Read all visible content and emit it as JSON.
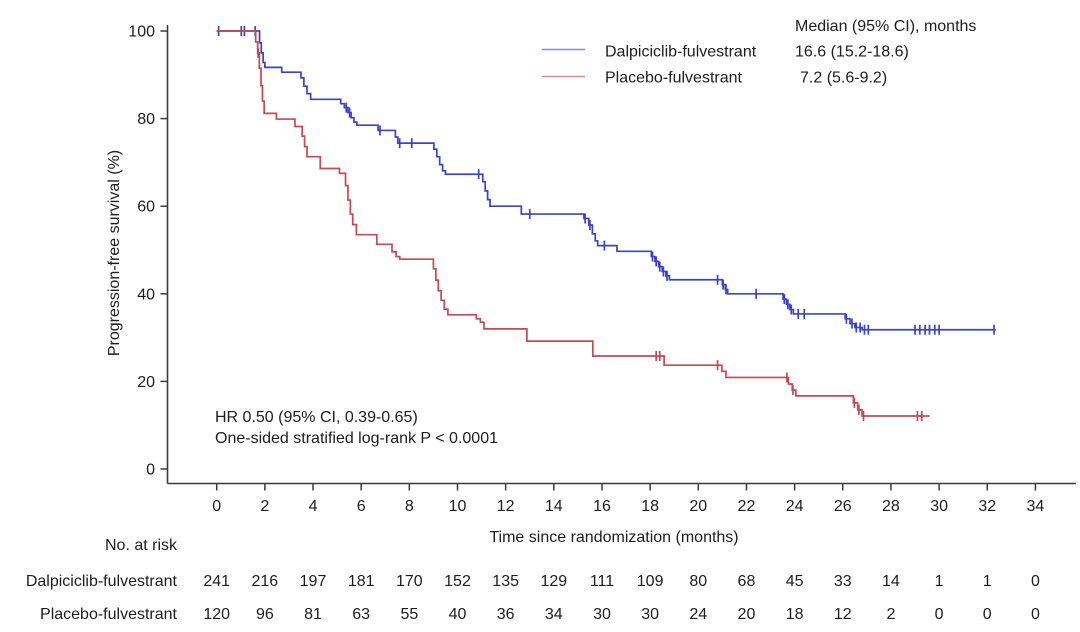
{
  "chart_data": {
    "type": "line",
    "subtype": "kaplan-meier-step",
    "title": "",
    "xlabel": "Time since randomization (months)",
    "ylabel": "Progression-free survival (%)",
    "xlim": [
      0,
      34
    ],
    "ylim": [
      0,
      100
    ],
    "xticks": [
      0,
      2,
      4,
      6,
      8,
      10,
      12,
      14,
      16,
      18,
      20,
      22,
      24,
      26,
      28,
      30,
      32,
      34
    ],
    "yticks": [
      0,
      20,
      40,
      60,
      80,
      100
    ],
    "grid": false,
    "legend_position": "top-center-right",
    "legend": {
      "header": "Median (95% CI), months",
      "entries": [
        {
          "label": "Dalpiciclib-fulvestrant",
          "median": "16.6 (15.2-18.6)",
          "color": "#3d43c6"
        },
        {
          "label": "Placebo-fulvestrant",
          "median": "7.2 (5.6-9.2)",
          "color": "#c44a53"
        }
      ]
    },
    "annotation": {
      "line1": "HR 0.50 (95% CI, 0.39-0.65)",
      "line2": "One-sided stratified log-rank P < 0.0001"
    },
    "series": [
      {
        "name": "Dalpiciclib-fulvestrant",
        "color": "#3d43c6",
        "steps": [
          [
            0,
            100
          ],
          [
            1.72,
            100
          ],
          [
            1.78,
            97.3
          ],
          [
            1.85,
            95
          ],
          [
            1.93,
            92.8
          ],
          [
            2.0,
            91.7
          ],
          [
            2.6,
            91.7
          ],
          [
            2.7,
            90.6
          ],
          [
            3.4,
            90.6
          ],
          [
            3.5,
            89.3
          ],
          [
            3.62,
            87.4
          ],
          [
            3.75,
            85.7
          ],
          [
            3.9,
            84.4
          ],
          [
            5.05,
            84.4
          ],
          [
            5.15,
            83.4
          ],
          [
            5.3,
            82.5
          ],
          [
            5.45,
            81.4
          ],
          [
            5.58,
            80.2
          ],
          [
            5.7,
            79.2
          ],
          [
            5.82,
            78.5
          ],
          [
            6.6,
            78.5
          ],
          [
            6.7,
            77.3
          ],
          [
            7.3,
            77.3
          ],
          [
            7.42,
            75.8
          ],
          [
            7.52,
            74.4
          ],
          [
            8.9,
            74.4
          ],
          [
            9.02,
            73.0
          ],
          [
            9.14,
            71.3
          ],
          [
            9.26,
            69.5
          ],
          [
            9.38,
            68.1
          ],
          [
            9.5,
            67.3
          ],
          [
            10.95,
            67.3
          ],
          [
            11.05,
            65.6
          ],
          [
            11.15,
            63.5
          ],
          [
            11.25,
            61.5
          ],
          [
            11.35,
            60.0
          ],
          [
            12.5,
            60.0
          ],
          [
            12.65,
            58.2
          ],
          [
            15.1,
            58.2
          ],
          [
            15.25,
            57.2
          ],
          [
            15.45,
            55.7
          ],
          [
            15.6,
            53.7
          ],
          [
            15.72,
            52.1
          ],
          [
            15.82,
            51.0
          ],
          [
            16.5,
            51.0
          ],
          [
            16.62,
            49.7
          ],
          [
            17.9,
            49.7
          ],
          [
            18.05,
            48.5
          ],
          [
            18.2,
            47.4
          ],
          [
            18.35,
            46.2
          ],
          [
            18.5,
            45.1
          ],
          [
            18.65,
            44.1
          ],
          [
            18.8,
            43.2
          ],
          [
            20.85,
            43.2
          ],
          [
            21.0,
            42.1
          ],
          [
            21.12,
            41.0
          ],
          [
            21.22,
            40.0
          ],
          [
            23.4,
            40.0
          ],
          [
            23.52,
            38.8
          ],
          [
            23.66,
            37.6
          ],
          [
            23.8,
            36.4
          ],
          [
            23.95,
            35.4
          ],
          [
            25.95,
            35.4
          ],
          [
            26.1,
            34.3
          ],
          [
            26.3,
            33.2
          ],
          [
            26.5,
            32.3
          ],
          [
            26.8,
            31.8
          ],
          [
            32.35,
            31.8
          ]
        ],
        "censors": [
          [
            0.08,
            100
          ],
          [
            1.02,
            100
          ],
          [
            1.15,
            100
          ],
          [
            1.6,
            100
          ],
          [
            5.38,
            82.5
          ],
          [
            5.52,
            81.4
          ],
          [
            6.78,
            77.3
          ],
          [
            7.6,
            74.4
          ],
          [
            8.1,
            74.4
          ],
          [
            10.88,
            67.3
          ],
          [
            13.0,
            58.2
          ],
          [
            15.3,
            57.2
          ],
          [
            15.5,
            55.7
          ],
          [
            16.1,
            51.0
          ],
          [
            18.1,
            48.5
          ],
          [
            18.25,
            47.4
          ],
          [
            18.4,
            46.2
          ],
          [
            18.55,
            45.1
          ],
          [
            18.7,
            44.1
          ],
          [
            20.8,
            43.2
          ],
          [
            21.03,
            42.1
          ],
          [
            21.15,
            41.0
          ],
          [
            22.4,
            40.0
          ],
          [
            23.57,
            38.8
          ],
          [
            23.72,
            37.6
          ],
          [
            23.86,
            36.4
          ],
          [
            24.15,
            35.4
          ],
          [
            24.4,
            35.4
          ],
          [
            26.15,
            34.3
          ],
          [
            26.38,
            33.2
          ],
          [
            26.56,
            32.3
          ],
          [
            26.72,
            32.3
          ],
          [
            26.9,
            31.8
          ],
          [
            27.06,
            31.8
          ],
          [
            29.0,
            31.8
          ],
          [
            29.2,
            31.8
          ],
          [
            29.42,
            31.8
          ],
          [
            29.6,
            31.8
          ],
          [
            29.82,
            31.8
          ],
          [
            30.0,
            31.8
          ],
          [
            32.28,
            31.8
          ]
        ]
      },
      {
        "name": "Placebo-fulvestrant",
        "color": "#c44a53",
        "steps": [
          [
            0,
            100
          ],
          [
            1.55,
            100
          ],
          [
            1.62,
            97.5
          ],
          [
            1.7,
            95.0
          ],
          [
            1.77,
            91.5
          ],
          [
            1.84,
            87.5
          ],
          [
            1.9,
            84.0
          ],
          [
            1.97,
            81.2
          ],
          [
            2.4,
            81.2
          ],
          [
            2.48,
            79.9
          ],
          [
            3.15,
            79.9
          ],
          [
            3.25,
            78.2
          ],
          [
            3.45,
            78.2
          ],
          [
            3.55,
            76.0
          ],
          [
            3.65,
            73.6
          ],
          [
            3.75,
            71.3
          ],
          [
            4.2,
            71.3
          ],
          [
            4.3,
            68.6
          ],
          [
            5.0,
            68.6
          ],
          [
            5.1,
            67.5
          ],
          [
            5.25,
            67.5
          ],
          [
            5.35,
            64.7
          ],
          [
            5.45,
            61.4
          ],
          [
            5.55,
            58.2
          ],
          [
            5.65,
            55.8
          ],
          [
            5.8,
            53.5
          ],
          [
            6.55,
            53.5
          ],
          [
            6.65,
            51.3
          ],
          [
            7.15,
            51.3
          ],
          [
            7.28,
            49.6
          ],
          [
            7.45,
            48.5
          ],
          [
            7.6,
            47.9
          ],
          [
            8.9,
            47.9
          ],
          [
            9.0,
            45.7
          ],
          [
            9.1,
            43.1
          ],
          [
            9.2,
            40.7
          ],
          [
            9.32,
            38.5
          ],
          [
            9.45,
            36.5
          ],
          [
            9.6,
            35.2
          ],
          [
            10.6,
            35.2
          ],
          [
            10.78,
            34.3
          ],
          [
            10.95,
            33.5
          ],
          [
            11.1,
            32.0
          ],
          [
            12.75,
            32.0
          ],
          [
            12.88,
            29.2
          ],
          [
            15.5,
            29.2
          ],
          [
            15.62,
            25.8
          ],
          [
            18.45,
            25.8
          ],
          [
            18.58,
            23.7
          ],
          [
            20.85,
            23.7
          ],
          [
            20.98,
            22.3
          ],
          [
            21.15,
            20.9
          ],
          [
            23.6,
            20.9
          ],
          [
            23.74,
            19.4
          ],
          [
            23.9,
            18.0
          ],
          [
            24.05,
            16.7
          ],
          [
            26.3,
            16.7
          ],
          [
            26.44,
            15.1
          ],
          [
            26.62,
            13.5
          ],
          [
            26.8,
            12.1
          ],
          [
            29.6,
            12.1
          ]
        ],
        "censors": [
          [
            1.72,
            95.0
          ],
          [
            18.25,
            25.8
          ],
          [
            18.4,
            25.8
          ],
          [
            20.8,
            23.7
          ],
          [
            23.68,
            20.9
          ],
          [
            23.93,
            18.0
          ],
          [
            26.48,
            15.1
          ],
          [
            26.67,
            13.5
          ],
          [
            26.86,
            12.1
          ],
          [
            29.1,
            12.1
          ],
          [
            29.28,
            12.1
          ]
        ]
      }
    ],
    "risk_table": {
      "title": "No. at risk",
      "times": [
        0,
        2,
        4,
        6,
        8,
        10,
        12,
        14,
        16,
        18,
        20,
        22,
        24,
        26,
        28,
        30,
        32,
        34
      ],
      "rows": [
        {
          "label": "Dalpiciclib-fulvestrant",
          "counts": [
            241,
            216,
            197,
            181,
            170,
            152,
            135,
            129,
            111,
            109,
            80,
            68,
            45,
            33,
            14,
            1,
            1,
            0
          ]
        },
        {
          "label": "Placebo-fulvestrant",
          "counts": [
            120,
            96,
            81,
            63,
            55,
            40,
            36,
            34,
            30,
            30,
            24,
            20,
            18,
            12,
            2,
            0,
            0,
            0
          ]
        }
      ]
    },
    "colors": {
      "axis": "#3a3a3a",
      "text": "#1d1d1d",
      "dalpiciclib": "#3d43c6",
      "placebo": "#c44a53"
    }
  }
}
